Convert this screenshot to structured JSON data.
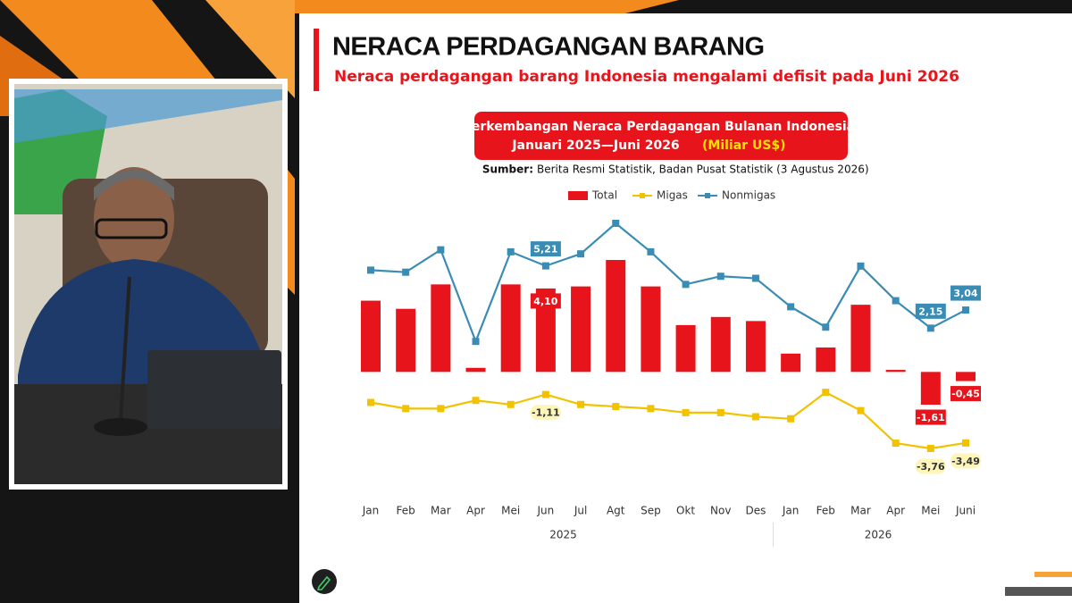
{
  "slide": {
    "title": "NERACA PERDAGANGAN BARANG",
    "subtitle": "Neraca perdagangan barang Indonesia mengalami defisit pada Juni 2026"
  },
  "chart_data": {
    "type": "bar-line",
    "title_lines": [
      "Perkembangan Neraca Perdagangan Bulanan Indonesia,",
      "Januari 2025—Juni 2026"
    ],
    "title_unit": "(Miliar US$)",
    "source_label": "Sumber:",
    "source": "Berita Resmi Statistik, Badan Pusat Statistik (3 Agustus 2026)",
    "categories": [
      "Jan",
      "Feb",
      "Mar",
      "Apr",
      "Mei",
      "Jun",
      "Jul",
      "Agt",
      "Sep",
      "Okt",
      "Nov",
      "Des",
      "Jan",
      "Feb",
      "Mar",
      "Apr",
      "Mei",
      "Juni"
    ],
    "x_groups": [
      "2025",
      "2026"
    ],
    "series": [
      {
        "name": "Total",
        "type": "bar",
        "color": "#e8141b",
        "values": [
          3.5,
          3.1,
          4.3,
          0.2,
          4.3,
          4.1,
          4.2,
          5.5,
          4.2,
          2.3,
          2.7,
          2.5,
          0.9,
          1.2,
          3.3,
          0.1,
          -1.61,
          -0.45
        ],
        "value_labels": [
          null,
          null,
          null,
          null,
          null,
          "4,10",
          null,
          null,
          null,
          null,
          null,
          null,
          null,
          null,
          null,
          null,
          "-1,61",
          "-0,45"
        ]
      },
      {
        "name": "Migas",
        "type": "line",
        "color": "#f2c200",
        "values": [
          -1.5,
          -1.8,
          -1.8,
          -1.4,
          -1.6,
          -1.11,
          -1.6,
          -1.7,
          -1.8,
          -2.0,
          -2.0,
          -2.2,
          -2.3,
          -1.0,
          -1.9,
          -3.5,
          -3.76,
          -3.49
        ],
        "value_labels": [
          null,
          null,
          null,
          null,
          null,
          "-1,11",
          null,
          null,
          null,
          null,
          null,
          null,
          null,
          null,
          null,
          null,
          "-3,76",
          "-3,49"
        ]
      },
      {
        "name": "Nonmigas",
        "type": "line",
        "color": "#3a8cb5",
        "values": [
          5.0,
          4.9,
          6.0,
          1.5,
          5.9,
          5.21,
          5.8,
          7.3,
          5.9,
          4.3,
          4.7,
          4.6,
          3.2,
          2.2,
          5.2,
          3.5,
          2.15,
          3.04
        ],
        "value_labels": [
          null,
          null,
          null,
          null,
          null,
          "5,21",
          null,
          null,
          null,
          null,
          null,
          null,
          null,
          null,
          null,
          null,
          "2,15",
          "3,04"
        ]
      }
    ]
  }
}
